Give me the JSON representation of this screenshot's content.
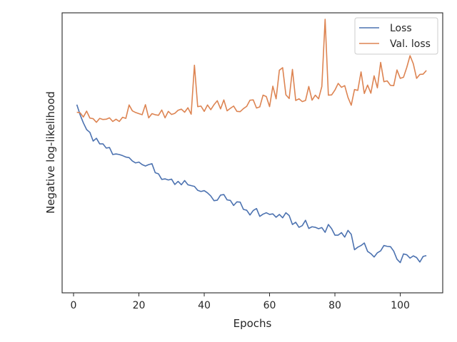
{
  "chart_data": {
    "type": "line",
    "xlabel": "Epochs",
    "ylabel": "Negative log-likelihood",
    "xlim": [
      -3.5,
      113
    ],
    "ylim": [
      0,
      1
    ],
    "x_ticks": [
      0,
      20,
      40,
      60,
      80,
      100
    ],
    "y_ticks_shown": false,
    "grid": false,
    "legend_placement": "upper right",
    "series": [
      {
        "name": "Loss",
        "color": "#4c72b0",
        "x": [
          1,
          2,
          3,
          4,
          5,
          6,
          7,
          8,
          9,
          10,
          11,
          12,
          13,
          14,
          15,
          16,
          17,
          18,
          19,
          20,
          21,
          22,
          23,
          24,
          25,
          26,
          27,
          28,
          29,
          30,
          31,
          32,
          33,
          34,
          35,
          36,
          37,
          38,
          39,
          40,
          41,
          42,
          43,
          44,
          45,
          46,
          47,
          48,
          49,
          50,
          51,
          52,
          53,
          54,
          55,
          56,
          57,
          58,
          59,
          60,
          61,
          62,
          63,
          64,
          65,
          66,
          67,
          68,
          69,
          70,
          71,
          72,
          73,
          74,
          75,
          76,
          77,
          78,
          79,
          80,
          81,
          82,
          83,
          84,
          85,
          86,
          87,
          88,
          89,
          90,
          91,
          92,
          93,
          94,
          95,
          96,
          97,
          98,
          99,
          100,
          101,
          102,
          103,
          104,
          105,
          106,
          107,
          108
        ],
        "values": [
          0.672,
          0.636,
          0.607,
          0.583,
          0.573,
          0.542,
          0.552,
          0.532,
          0.532,
          0.517,
          0.519,
          0.494,
          0.496,
          0.494,
          0.49,
          0.485,
          0.483,
          0.471,
          0.464,
          0.467,
          0.458,
          0.453,
          0.458,
          0.461,
          0.429,
          0.425,
          0.405,
          0.407,
          0.403,
          0.406,
          0.387,
          0.398,
          0.386,
          0.401,
          0.386,
          0.383,
          0.38,
          0.366,
          0.362,
          0.365,
          0.357,
          0.346,
          0.329,
          0.331,
          0.349,
          0.351,
          0.332,
          0.33,
          0.312,
          0.325,
          0.324,
          0.298,
          0.295,
          0.278,
          0.294,
          0.301,
          0.273,
          0.281,
          0.286,
          0.28,
          0.282,
          0.27,
          0.28,
          0.268,
          0.286,
          0.276,
          0.244,
          0.252,
          0.234,
          0.24,
          0.259,
          0.23,
          0.236,
          0.234,
          0.229,
          0.233,
          0.216,
          0.244,
          0.229,
          0.206,
          0.206,
          0.215,
          0.199,
          0.223,
          0.209,
          0.154,
          0.163,
          0.169,
          0.178,
          0.148,
          0.14,
          0.128,
          0.143,
          0.15,
          0.169,
          0.166,
          0.165,
          0.149,
          0.12,
          0.108,
          0.139,
          0.136,
          0.124,
          0.132,
          0.126,
          0.11,
          0.13,
          0.133
        ]
      },
      {
        "name": "Val. loss",
        "color": "#dd8452",
        "x": [
          1,
          2,
          3,
          4,
          5,
          6,
          7,
          8,
          9,
          10,
          11,
          12,
          13,
          14,
          15,
          16,
          17,
          18,
          19,
          20,
          21,
          22,
          23,
          24,
          25,
          26,
          27,
          28,
          29,
          30,
          31,
          32,
          33,
          34,
          35,
          36,
          37,
          38,
          39,
          40,
          41,
          42,
          43,
          44,
          45,
          46,
          47,
          48,
          49,
          50,
          51,
          52,
          53,
          54,
          55,
          56,
          57,
          58,
          59,
          60,
          61,
          62,
          63,
          64,
          65,
          66,
          67,
          68,
          69,
          70,
          71,
          72,
          73,
          74,
          75,
          76,
          77,
          78,
          79,
          80,
          81,
          82,
          83,
          84,
          85,
          86,
          87,
          88,
          89,
          90,
          91,
          92,
          93,
          94,
          95,
          96,
          97,
          98,
          99,
          100,
          101,
          102,
          103,
          104,
          105,
          106,
          107,
          108
        ],
        "values": [
          0.645,
          0.643,
          0.628,
          0.649,
          0.624,
          0.622,
          0.609,
          0.623,
          0.619,
          0.62,
          0.625,
          0.612,
          0.62,
          0.612,
          0.627,
          0.623,
          0.671,
          0.65,
          0.644,
          0.64,
          0.636,
          0.672,
          0.625,
          0.64,
          0.636,
          0.634,
          0.653,
          0.625,
          0.648,
          0.637,
          0.641,
          0.652,
          0.656,
          0.645,
          0.661,
          0.638,
          0.813,
          0.665,
          0.667,
          0.648,
          0.671,
          0.654,
          0.672,
          0.686,
          0.657,
          0.689,
          0.65,
          0.659,
          0.667,
          0.648,
          0.647,
          0.658,
          0.666,
          0.688,
          0.689,
          0.66,
          0.664,
          0.706,
          0.701,
          0.665,
          0.738,
          0.693,
          0.795,
          0.804,
          0.707,
          0.694,
          0.798,
          0.687,
          0.693,
          0.683,
          0.687,
          0.737,
          0.688,
          0.706,
          0.693,
          0.737,
          0.977,
          0.706,
          0.707,
          0.724,
          0.748,
          0.734,
          0.74,
          0.698,
          0.67,
          0.726,
          0.723,
          0.789,
          0.712,
          0.742,
          0.713,
          0.775,
          0.732,
          0.823,
          0.754,
          0.757,
          0.741,
          0.74,
          0.796,
          0.766,
          0.77,
          0.805,
          0.847,
          0.818,
          0.766,
          0.78,
          0.781,
          0.794
        ]
      }
    ]
  }
}
